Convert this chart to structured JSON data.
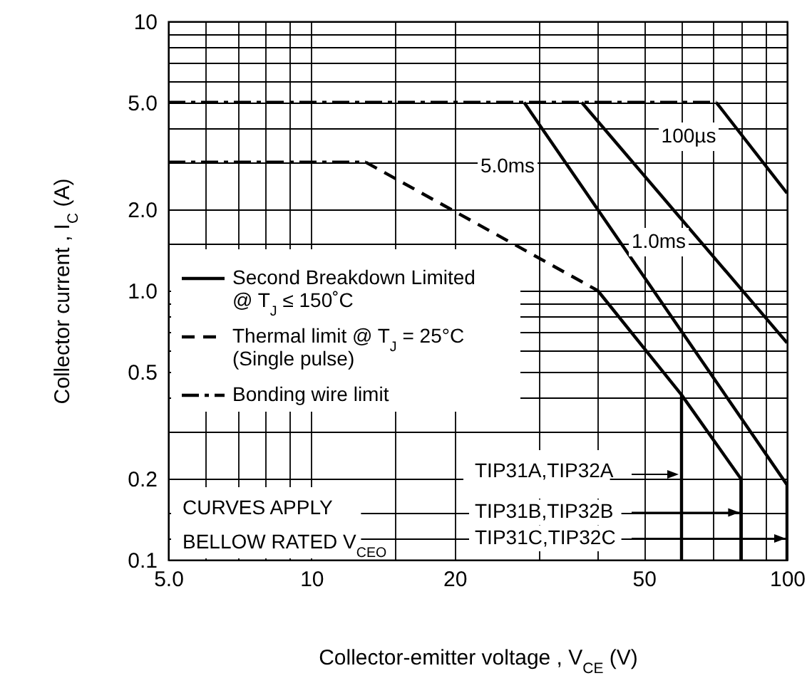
{
  "chart_data": {
    "type": "line",
    "xlabel": "Collector-emitter voltage , V$_{CE}$ (V)",
    "ylabel": "Collector current , I$_{C}$ (A)",
    "log": "xy",
    "grid": true,
    "legend": "bottom left",
    "xlim": [
      5,
      100
    ],
    "xticks": [
      {
        "value": 5,
        "label": "5.0"
      },
      {
        "value": 6,
        "label": null
      },
      {
        "value": 7,
        "label": null
      },
      {
        "value": 8,
        "label": null
      },
      {
        "value": 9,
        "label": null
      },
      10,
      {
        "value": 15,
        "label": null
      },
      20,
      {
        "value": 30,
        "label": null
      },
      {
        "value": 40,
        "label": null
      },
      50,
      {
        "value": 60,
        "label": null
      },
      {
        "value": 70,
        "label": null
      },
      {
        "value": 80,
        "label": null
      },
      {
        "value": 90,
        "label": null
      },
      100
    ],
    "ylim": [
      0.1,
      10
    ],
    "yticks": [
      0.1,
      {
        "value": 0.12,
        "label": null
      },
      {
        "value": 0.15,
        "label": null
      },
      0.2,
      {
        "value": 0.3,
        "label": null
      },
      {
        "value": 0.4,
        "label": null
      },
      0.5,
      {
        "value": 0.6,
        "label": null
      },
      {
        "value": 0.7,
        "label": null
      },
      {
        "value": 0.8,
        "label": null
      },
      {
        "value": 0.9,
        "label": null
      },
      {
        "value": 1,
        "label": "1.0"
      },
      {
        "value": 1.5,
        "label": null
      },
      {
        "value": 2,
        "label": "2.0"
      },
      {
        "value": 3,
        "label": null
      },
      {
        "value": 4,
        "label": null
      },
      {
        "value": 5,
        "label": "5.0"
      },
      {
        "value": 6,
        "label": null
      },
      {
        "value": 7,
        "label": null
      },
      {
        "value": 8,
        "label": null
      },
      {
        "value": 9,
        "label": null
      },
      10
    ],
    "series": [
      {
        "name": "Second Breakdown Limited\n@ T$_{J}$ ≤ 150˚C",
        "color": "#000000",
        "line_style": "solid",
        "x": [
          40,
          60,
          60
        ],
        "values": [
          1.0,
          0.41,
          0.1
        ]
      },
      {
        "color": "#000000",
        "line_style": "solid",
        "x": [
          60,
          80,
          80
        ],
        "values": [
          0.41,
          0.2,
          0.1
        ]
      },
      {
        "color": "#000000",
        "line_style": "solid",
        "x": [
          28,
          100,
          100
        ],
        "values": [
          5,
          0.19,
          0.1
        ]
      },
      {
        "color": "#000000",
        "line_style": "solid",
        "x": [
          37,
          100
        ],
        "values": [
          5,
          0.64
        ]
      },
      {
        "color": "#000000",
        "line_style": "solid",
        "x": [
          71,
          100
        ],
        "values": [
          5,
          2.3
        ]
      },
      {
        "name": "Thermal limit @ T$_{J}$ = 25°C\n(Single pulse)",
        "color": "#000000",
        "line_style": "dashed",
        "x": [
          13,
          40
        ],
        "values": [
          3,
          1.0
        ]
      },
      {
        "name": "Bonding wire limit",
        "color": "#000000",
        "line_style": "dashdot",
        "x": [
          5,
          71
        ],
        "values": [
          5,
          5
        ]
      },
      {
        "color": "#000000",
        "line_style": "dashdot",
        "x": [
          5,
          13
        ],
        "values": [
          3,
          3
        ]
      }
    ],
    "annotations": [
      "5.0ms",
      "1.0ms",
      "100µs",
      "CURVES APPLY\nBELLOW RATED V$_{CEO}$",
      "TIP31A,TIP32A",
      {
        "text": "TIP31B,TIP32B",
        "x": 80,
        "y": 0.15
      },
      {
        "text": "TIP31C,TIP32C",
        "x": 100,
        "y": 0.12
      }
    ]
  }
}
